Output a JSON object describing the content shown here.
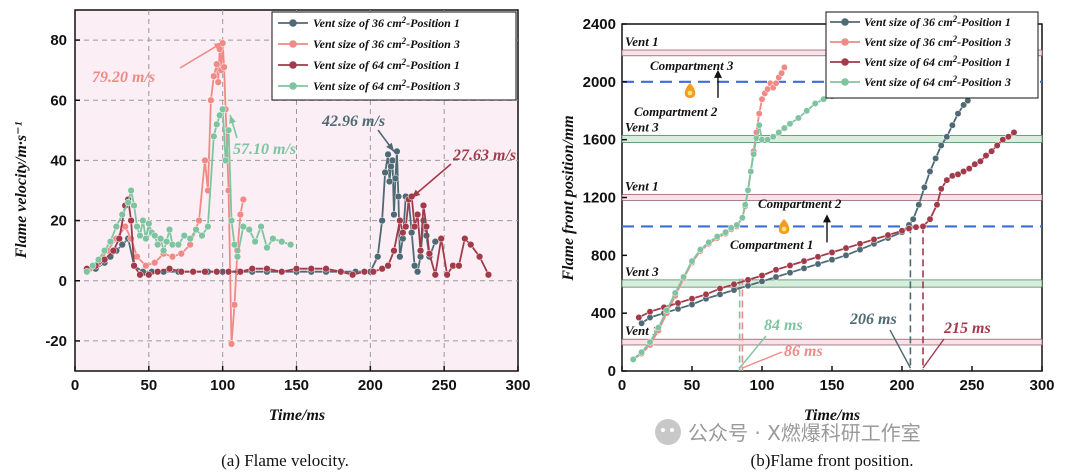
{
  "chart_data": [
    {
      "type": "line",
      "caption": "(a) Flame velocity.",
      "xlabel": "Time/ms",
      "ylabel": "Flame velocity/m·s⁻¹",
      "xlim": [
        0,
        300
      ],
      "ylim": [
        -30,
        90
      ],
      "xticks": [
        0,
        50,
        100,
        150,
        200,
        250,
        300
      ],
      "yticks": [
        -20,
        0,
        20,
        40,
        60,
        80
      ],
      "grid": true,
      "legend": "top-right",
      "series": [
        {
          "name": "Vent size of 36 cm²-Position 1",
          "color": "#4f6a74",
          "x": [
            8,
            14,
            20,
            24,
            28,
            32,
            36,
            40,
            46,
            52,
            60,
            70,
            80,
            90,
            100,
            110,
            120,
            130,
            140,
            150,
            160,
            170,
            180,
            190,
            200,
            205,
            208,
            210,
            212,
            213,
            214,
            215,
            216,
            217,
            218,
            219,
            220,
            222,
            224,
            226,
            228,
            230,
            232,
            234,
            236,
            238,
            240,
            244
          ],
          "y": [
            4,
            4,
            6,
            8,
            10,
            12,
            14,
            5,
            3,
            3,
            3,
            3,
            3,
            3,
            3,
            3,
            3,
            3,
            3,
            3,
            3,
            3,
            3,
            3,
            3,
            8,
            20,
            36,
            42,
            33,
            38,
            40,
            22,
            34,
            43,
            28,
            8,
            14,
            28,
            27,
            16,
            5,
            3,
            8,
            20,
            15,
            8,
            13
          ]
        },
        {
          "name": "Vent size of 36 cm²-Position 3",
          "color": "#f08a86",
          "x": [
            10,
            16,
            22,
            28,
            34,
            38,
            42,
            48,
            54,
            60,
            66,
            72,
            78,
            84,
            88,
            90,
            92,
            94,
            96,
            97,
            98,
            99,
            100,
            101,
            102,
            104,
            106,
            108,
            110,
            112,
            114
          ],
          "y": [
            4,
            6,
            10,
            14,
            18,
            14,
            8,
            5,
            6,
            9,
            8,
            9,
            12,
            20,
            40,
            30,
            60,
            68,
            72,
            66,
            77,
            70,
            79,
            71,
            57,
            30,
            -21,
            -8,
            10,
            22,
            27
          ]
        },
        {
          "name": "Vent size of 64 cm²-Position 1",
          "color": "#a33a4a",
          "x": [
            8,
            14,
            20,
            26,
            30,
            34,
            36,
            38,
            40,
            44,
            50,
            56,
            64,
            72,
            80,
            88,
            96,
            104,
            112,
            120,
            130,
            140,
            150,
            160,
            170,
            180,
            188,
            196,
            202,
            208,
            212,
            216,
            220,
            222,
            224,
            226,
            228,
            230,
            232,
            234,
            236,
            238,
            240,
            244,
            248,
            252,
            256,
            260,
            264,
            268,
            274,
            280
          ],
          "y": [
            4,
            5,
            7,
            10,
            14,
            25,
            27,
            20,
            5,
            2,
            2,
            3,
            4,
            3,
            3,
            3,
            3,
            3,
            3,
            4,
            4,
            3,
            4,
            4,
            4,
            3,
            2,
            3,
            3,
            4,
            5,
            10,
            20,
            16,
            18,
            27,
            28,
            18,
            22,
            10,
            25,
            18,
            9,
            2,
            14,
            2,
            5,
            5,
            14,
            12,
            8,
            2
          ]
        },
        {
          "name": "Vent size of 64 cm²-Position 3",
          "color": "#7fc4a0",
          "x": [
            8,
            12,
            16,
            20,
            24,
            28,
            32,
            36,
            38,
            40,
            42,
            44,
            46,
            48,
            50,
            52,
            54,
            56,
            58,
            60,
            62,
            64,
            66,
            70,
            74,
            78,
            82,
            86,
            90,
            94,
            96,
            98,
            100,
            102,
            104,
            106,
            108,
            110,
            114,
            118,
            122,
            126,
            130,
            134,
            140,
            146
          ],
          "y": [
            3,
            5,
            7,
            10,
            13,
            18,
            22,
            26,
            30,
            25,
            18,
            15,
            20,
            14,
            19,
            16,
            15,
            12,
            14,
            10,
            13,
            17,
            12,
            12,
            15,
            14,
            17,
            15,
            18,
            48,
            52,
            55,
            57,
            40,
            50,
            20,
            12,
            8,
            18,
            17,
            13,
            18,
            11,
            14,
            13,
            12
          ]
        }
      ],
      "annotations": [
        {
          "text": "79.20 m/s",
          "color": "#f08a86",
          "x": 100,
          "y": 79.2
        },
        {
          "text": "57.10 m/s",
          "color": "#7fc4a0",
          "x": 101,
          "y": 57.1
        },
        {
          "text": "42.96 m/s",
          "color": "#4f6a74",
          "x": 216,
          "y": 42.96
        },
        {
          "text": "27.63 m/s",
          "color": "#a33a4a",
          "x": 228,
          "y": 27.63
        }
      ]
    },
    {
      "type": "line",
      "caption": "(b)Flame front position.",
      "xlabel": "Time/ms",
      "ylabel": "Flame front position/mm",
      "xlim": [
        0,
        300
      ],
      "ylim": [
        0,
        2400
      ],
      "xticks": [
        0,
        50,
        100,
        150,
        200,
        250,
        300
      ],
      "yticks": [
        0,
        400,
        800,
        1200,
        1600,
        2000,
        2400
      ],
      "legend": "top-right",
      "zones": [
        {
          "label": "Vent 1",
          "y0": 2180,
          "y1": 2220
        },
        {
          "label": "Vent 3",
          "y0": 1580,
          "y1": 1630
        },
        {
          "label": "Vent 1",
          "y0": 1180,
          "y1": 1220
        },
        {
          "label": "Vent 3",
          "y0": 580,
          "y1": 630
        },
        {
          "label": "Vent 1",
          "y0": 180,
          "y1": 220
        }
      ],
      "boundaries": [
        {
          "y": 2000,
          "above": "Compartment 3",
          "below": "Compartment 2"
        },
        {
          "y": 1000,
          "above": "Compartment 2",
          "below": "Compartment 1"
        }
      ],
      "vertical_markers": [
        {
          "x": 84,
          "text": "84 ms",
          "color": "#7fc4a0"
        },
        {
          "x": 86,
          "text": "86 ms",
          "color": "#f08a86"
        },
        {
          "x": 206,
          "text": "206 ms",
          "color": "#4f6a74"
        },
        {
          "x": 215,
          "text": "215 ms",
          "color": "#a33a4a"
        }
      ],
      "series": [
        {
          "name": "Vent size of 36 cm²-Position 1",
          "color": "#4f6a74",
          "x": [
            14,
            20,
            30,
            40,
            50,
            60,
            70,
            80,
            90,
            100,
            110,
            120,
            130,
            140,
            150,
            160,
            170,
            180,
            190,
            200,
            205,
            208,
            212,
            216,
            220,
            224,
            228,
            232,
            236,
            240,
            244,
            247
          ],
          "y": [
            330,
            370,
            400,
            430,
            460,
            500,
            530,
            560,
            590,
            620,
            650,
            680,
            710,
            740,
            770,
            800,
            840,
            880,
            920,
            960,
            1010,
            1050,
            1150,
            1270,
            1380,
            1470,
            1560,
            1620,
            1700,
            1780,
            1840,
            1870
          ]
        },
        {
          "name": "Vent size of 36 cm²-Position 3",
          "color": "#f08a86",
          "x": [
            8,
            14,
            20,
            26,
            32,
            38,
            44,
            50,
            56,
            62,
            68,
            74,
            78,
            82,
            86,
            88,
            90,
            92,
            94,
            96,
            98,
            100,
            102,
            104,
            106,
            108,
            110,
            112,
            114,
            116
          ],
          "y": [
            80,
            120,
            180,
            280,
            400,
            520,
            640,
            750,
            830,
            880,
            920,
            950,
            980,
            1000,
            1060,
            1140,
            1250,
            1380,
            1520,
            1650,
            1780,
            1880,
            1920,
            1950,
            1990,
            1960,
            1990,
            2030,
            2060,
            2100
          ]
        },
        {
          "name": "Vent size of 64 cm²-Position 1",
          "color": "#a33a4a",
          "x": [
            12,
            20,
            30,
            40,
            50,
            60,
            70,
            80,
            90,
            100,
            110,
            120,
            130,
            140,
            150,
            160,
            170,
            180,
            190,
            200,
            205,
            210,
            215,
            220,
            225,
            228,
            232,
            236,
            240,
            244,
            248,
            252,
            256,
            260,
            264,
            268,
            272,
            276,
            280
          ],
          "y": [
            370,
            410,
            440,
            470,
            500,
            530,
            570,
            600,
            630,
            660,
            700,
            730,
            760,
            790,
            820,
            850,
            880,
            910,
            940,
            970,
            985,
            995,
            1000,
            1050,
            1150,
            1260,
            1320,
            1350,
            1360,
            1380,
            1400,
            1430,
            1450,
            1490,
            1520,
            1560,
            1600,
            1620,
            1650
          ]
        },
        {
          "name": "Vent size of 64 cm²-Position 3",
          "color": "#7fc4a0",
          "x": [
            8,
            14,
            20,
            26,
            32,
            38,
            44,
            50,
            56,
            62,
            68,
            74,
            78,
            82,
            86,
            88,
            90,
            92,
            94,
            96,
            98,
            100,
            104,
            108,
            112,
            116,
            120,
            126,
            132,
            138,
            144,
            150,
            156,
            160
          ],
          "y": [
            80,
            130,
            200,
            300,
            420,
            540,
            650,
            760,
            840,
            890,
            930,
            960,
            990,
            1010,
            1060,
            1150,
            1250,
            1380,
            1500,
            1610,
            1700,
            1600,
            1600,
            1620,
            1650,
            1680,
            1710,
            1750,
            1800,
            1850,
            1880,
            1900,
            1920,
            1940
          ]
        }
      ]
    }
  ],
  "watermark": "公众号 · X燃爆科研工作室"
}
